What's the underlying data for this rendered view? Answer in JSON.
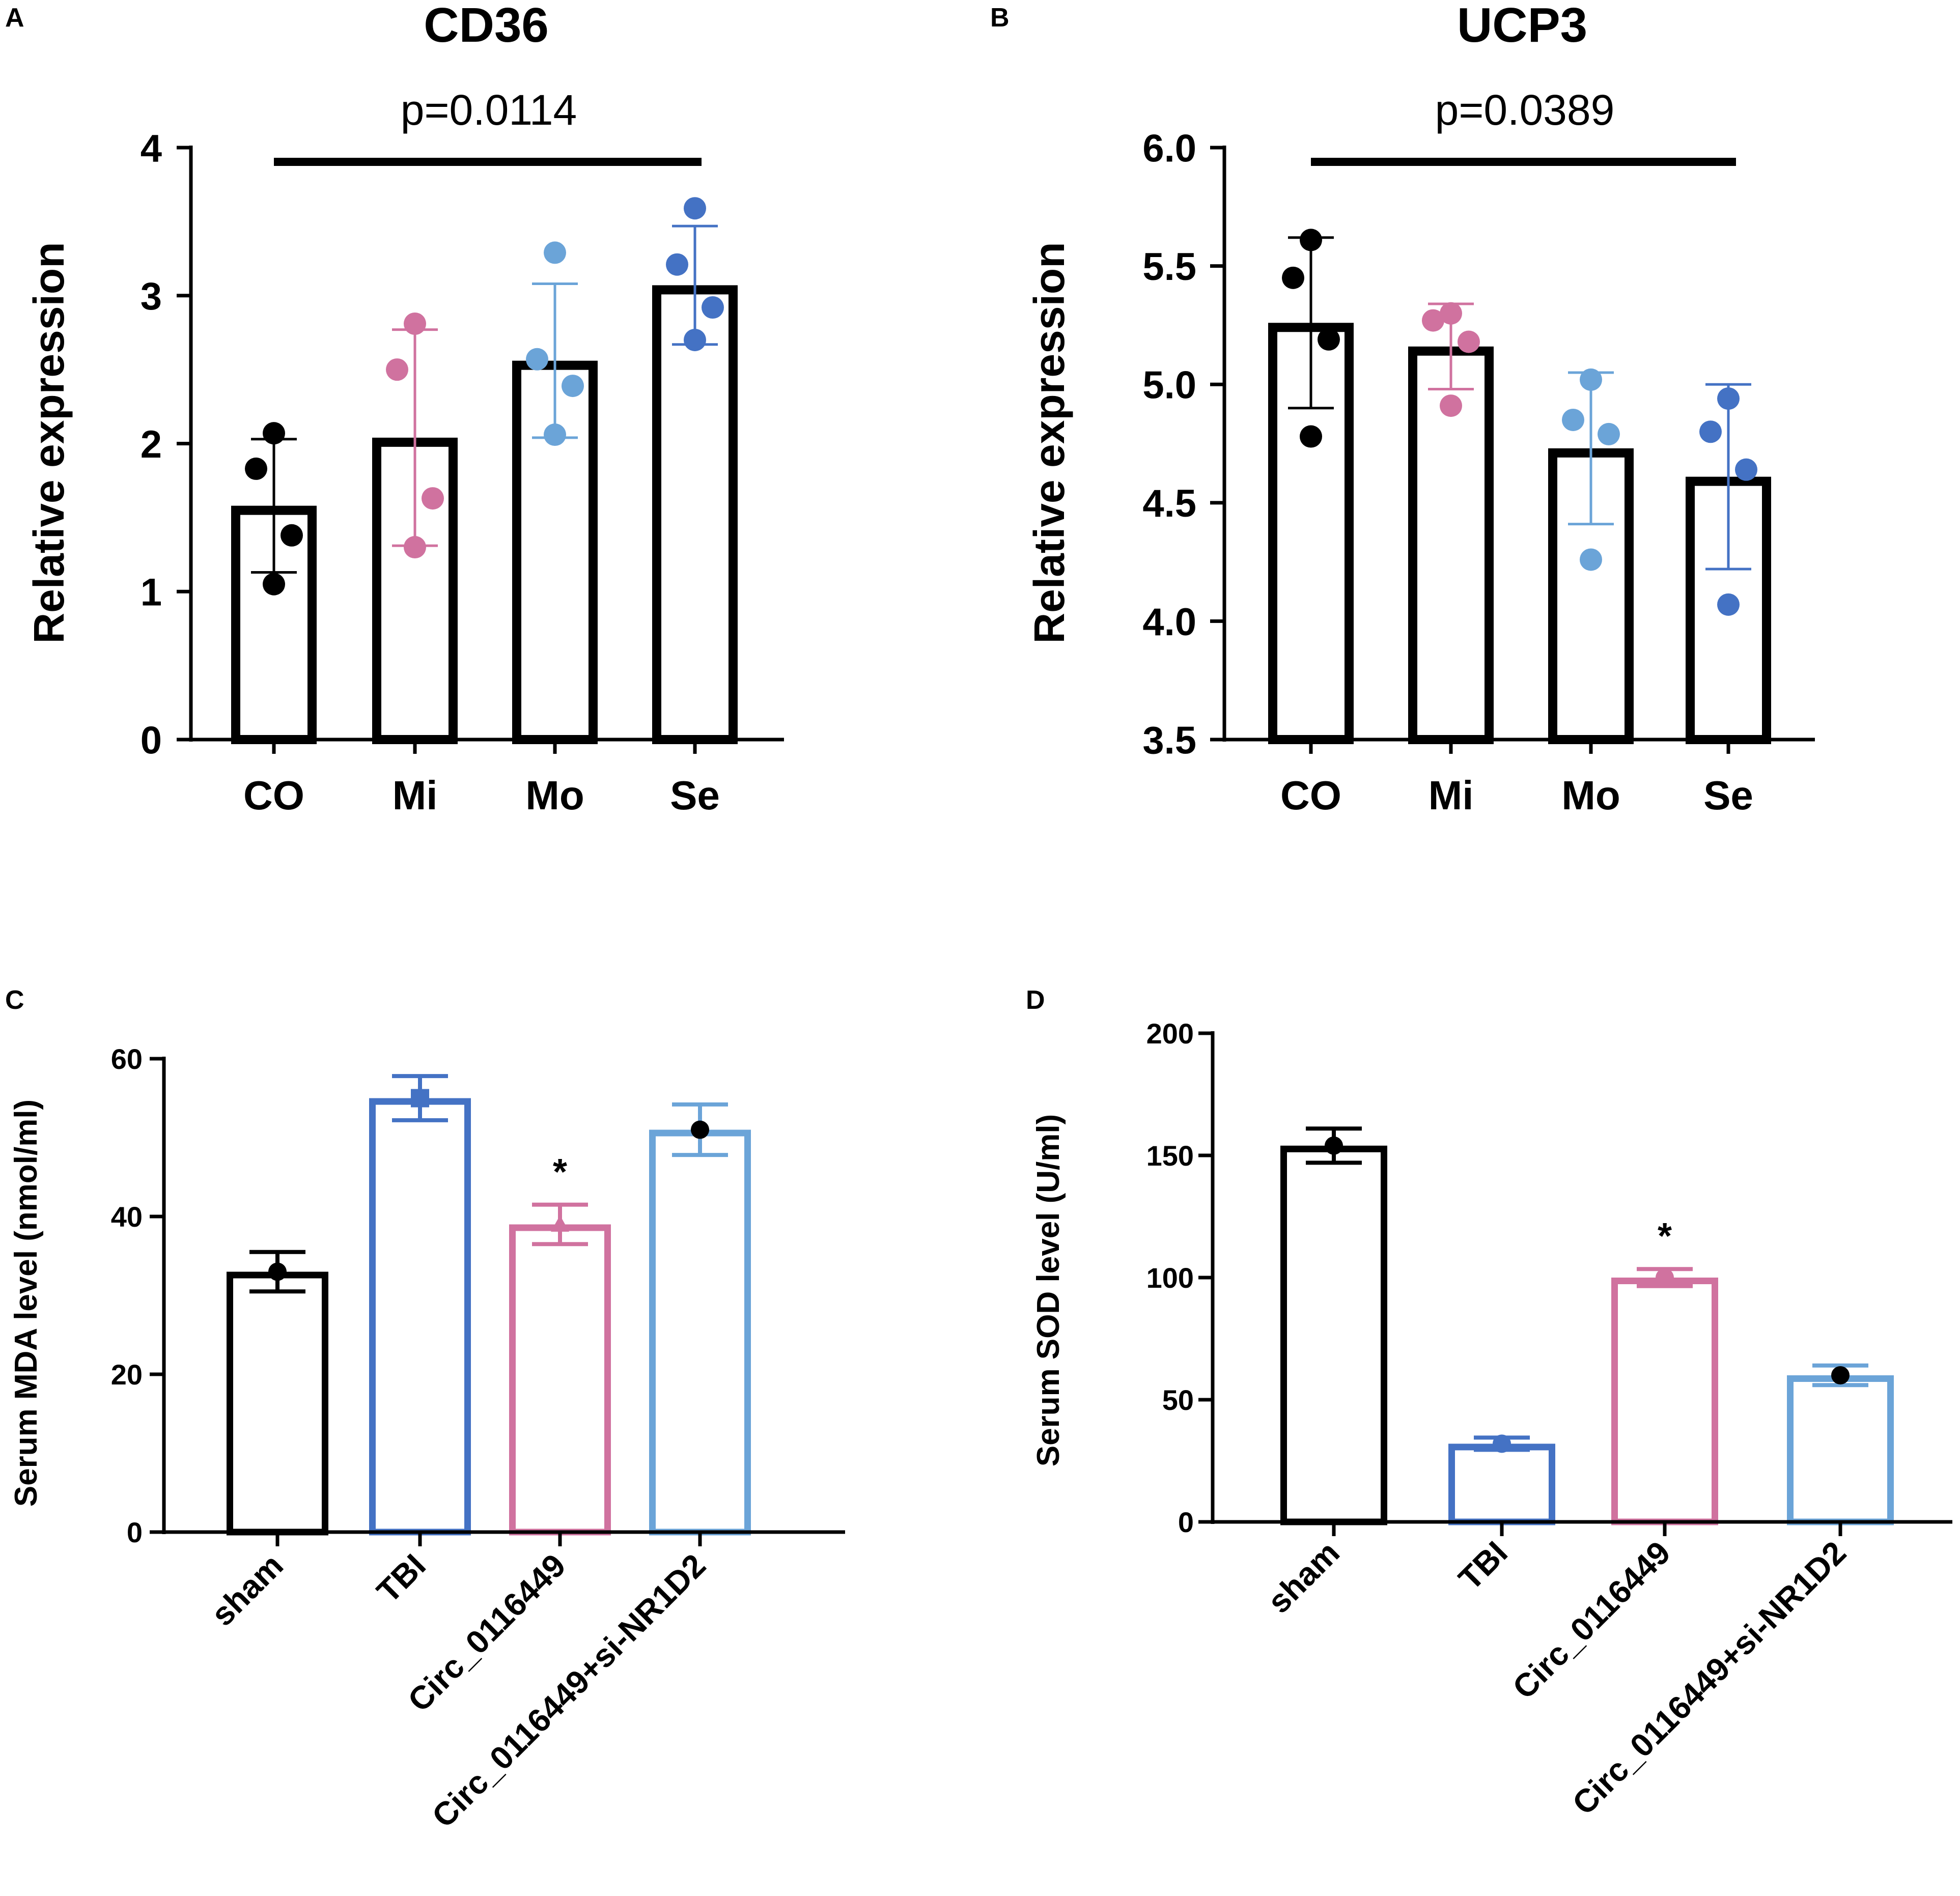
{
  "figure": {
    "background": "#ffffff"
  },
  "chart_data": [
    {
      "panel": "A",
      "type": "bar",
      "title": "CD36",
      "ylabel": "Relative  expression",
      "xlabel": "",
      "categories": [
        "CO",
        "Mi",
        "Mo",
        "Se"
      ],
      "values": [
        1.58,
        2.04,
        2.56,
        3.07
      ],
      "errors": [
        0.45,
        0.73,
        0.52,
        0.4
      ],
      "points": [
        [
          2.07,
          1.83,
          1.38,
          1.05
        ],
        [
          2.81,
          2.5,
          1.63,
          1.3
        ],
        [
          3.29,
          2.57,
          2.39,
          2.06
        ],
        [
          3.59,
          3.21,
          2.92,
          2.7
        ]
      ],
      "point_colors": [
        "#000000",
        "#d0729f",
        "#6ba4d8",
        "#4472c4"
      ],
      "bar_colors": [
        "#000000",
        "#000000",
        "#000000",
        "#000000"
      ],
      "ylim": [
        0,
        4
      ],
      "yticks": [
        "0",
        "1",
        "2",
        "3",
        "4"
      ],
      "annotation": {
        "text": "p=0.0114",
        "from": "CO",
        "to": "Se"
      }
    },
    {
      "panel": "B",
      "type": "bar",
      "title": "UCP3",
      "ylabel": "Relative  expression",
      "xlabel": "",
      "categories": [
        "CO",
        "Mi",
        "Mo",
        "Se"
      ],
      "values": [
        5.26,
        5.16,
        4.73,
        4.61
      ],
      "errors": [
        0.36,
        0.18,
        0.32,
        0.39
      ],
      "points": [
        [
          5.61,
          5.45,
          5.19,
          4.78
        ],
        [
          5.3,
          5.27,
          5.18,
          4.91
        ],
        [
          5.02,
          4.85,
          4.79,
          4.26
        ],
        [
          4.94,
          4.8,
          4.64,
          4.07
        ]
      ],
      "point_colors": [
        "#000000",
        "#d0729f",
        "#6ba4d8",
        "#4472c4"
      ],
      "bar_colors": [
        "#000000",
        "#000000",
        "#000000",
        "#000000"
      ],
      "ylim": [
        3.5,
        6.0
      ],
      "yticks": [
        "3.5",
        "4.0",
        "4.5",
        "5.0",
        "5.5",
        "6.0"
      ],
      "annotation": {
        "text": "p=0.0389",
        "from": "CO",
        "to": "Se"
      }
    },
    {
      "panel": "C",
      "type": "bar",
      "title": "",
      "ylabel": "Serum MDA level (nmol/ml)",
      "xlabel": "",
      "categories": [
        "sham",
        "TBI",
        "Circ_0116449",
        "Circ_0116449+si-NR1D2"
      ],
      "values": [
        33,
        55,
        39,
        51
      ],
      "errors": [
        2.5,
        2.8,
        2.5,
        3.2
      ],
      "points": [
        [
          33
        ],
        [
          55
        ],
        [
          39
        ],
        [
          51
        ]
      ],
      "point_colors": [
        "#000000",
        "#4472c4",
        "#d0729f",
        "#000000"
      ],
      "bar_colors": [
        "#000000",
        "#4472c4",
        "#d0729f",
        "#6ba4d8"
      ],
      "ylim": [
        0,
        60
      ],
      "yticks": [
        "0",
        "20",
        "40",
        "60"
      ],
      "significance": [
        {
          "category": "Circ_0116449",
          "text": "*"
        }
      ]
    },
    {
      "panel": "D",
      "type": "bar",
      "title": "",
      "ylabel": "Serum SOD level (U/ml)",
      "xlabel": "",
      "categories": [
        "sham",
        "TBI",
        "Circ_0116449",
        "Circ_0116449+si-NR1D2"
      ],
      "values": [
        154,
        32,
        100,
        60
      ],
      "errors": [
        7,
        2.5,
        3.5,
        4
      ],
      "points": [
        [
          154
        ],
        [
          32
        ],
        [
          100
        ],
        [
          60
        ]
      ],
      "point_colors": [
        "#000000",
        "#4472c4",
        "#d0729f",
        "#000000"
      ],
      "bar_colors": [
        "#000000",
        "#4472c4",
        "#d0729f",
        "#6ba4d8"
      ],
      "ylim": [
        0,
        200
      ],
      "yticks": [
        "0",
        "50",
        "100",
        "150",
        "200"
      ],
      "significance": [
        {
          "category": "Circ_0116449",
          "text": "*"
        }
      ]
    }
  ]
}
